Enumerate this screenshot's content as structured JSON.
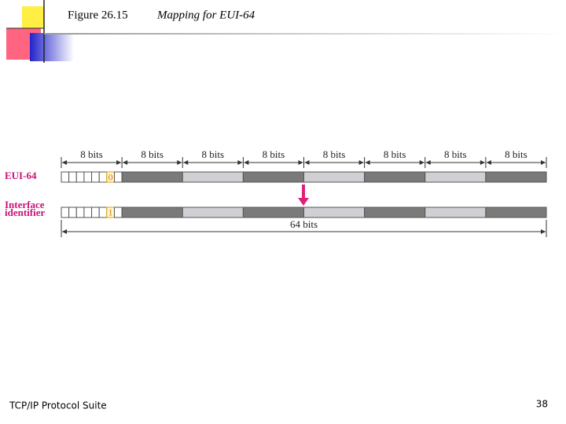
{
  "header": {
    "figure": "Figure 26.15",
    "title": "Mapping for EUI-64"
  },
  "diagram": {
    "segment_labels": [
      "8 bits",
      "8 bits",
      "8 bits",
      "8 bits",
      "8 bits",
      "8 bits",
      "8 bits",
      "8 bits"
    ],
    "rows": [
      {
        "label": [
          "EUI-64"
        ],
        "bit": "0"
      },
      {
        "label": [
          "Interface",
          "identifier"
        ],
        "bit": "1"
      }
    ],
    "total": "64 bits"
  },
  "footer": {
    "text": "TCP/IP Protocol Suite",
    "page": "38"
  }
}
